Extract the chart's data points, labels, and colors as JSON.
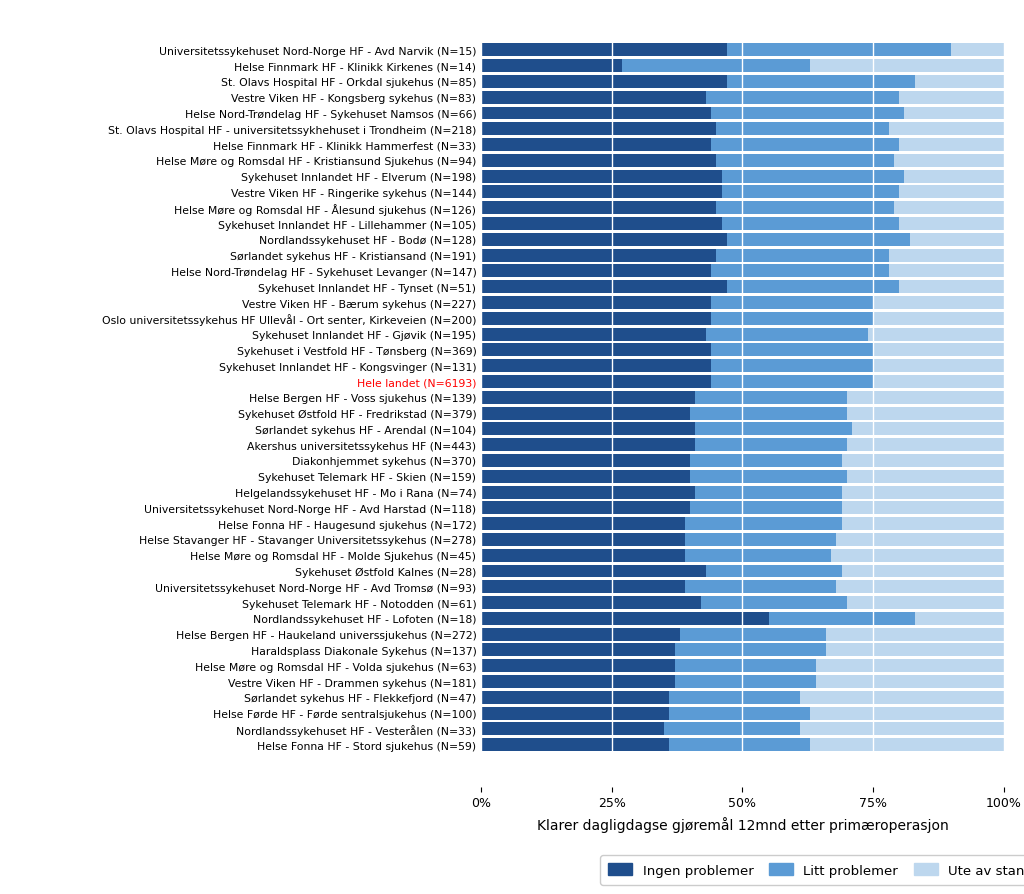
{
  "hospitals": [
    "Universitetssykehuset Nord-Norge HF - Avd Narvik (N=15)",
    "Helse Finnmark HF - Klinikk Kirkenes (N=14)",
    "St. Olavs Hospital HF - Orkdal sjukehus (N=85)",
    "Vestre Viken HF - Kongsberg sykehus (N=83)",
    "Helse Nord-Trøndelag HF - Sykehuset Namsos (N=66)",
    "St. Olavs Hospital HF - universitetssykhehuset i Trondheim (N=218)",
    "Helse Finnmark HF - Klinikk Hammerfest (N=33)",
    "Helse Møre og Romsdal HF - Kristiansund Sjukehus (N=94)",
    "Sykehuset Innlandet HF - Elverum (N=198)",
    "Vestre Viken HF - Ringerike sykehus (N=144)",
    "Helse Møre og Romsdal HF - Ålesund sjukehus (N=126)",
    "Sykehuset Innlandet HF - Lillehammer (N=105)",
    "Nordlandssykehuset HF - Bodø (N=128)",
    "Sørlandet sykehus HF - Kristiansand (N=191)",
    "Helse Nord-Trøndelag HF - Sykehuset Levanger (N=147)",
    "Sykehuset Innlandet HF - Tynset (N=51)",
    "Vestre Viken HF - Bærum sykehus (N=227)",
    "Oslo universitetssykehus HF Ullevål - Ort senter, Kirkeveien (N=200)",
    "Sykehuset Innlandet HF - Gjøvik (N=195)",
    "Sykehuset i Vestfold HF - Tønsberg (N=369)",
    "Sykehuset Innlandet HF - Kongsvinger (N=131)",
    "Hele landet (N=6193)",
    "Helse Bergen HF - Voss sjukehus (N=139)",
    "Sykehuset Østfold HF - Fredrikstad (N=379)",
    "Sørlandet sykehus HF - Arendal (N=104)",
    "Akershus universitetssykehus HF (N=443)",
    "Diakonhjemmet sykehus (N=370)",
    "Sykehuset Telemark HF - Skien (N=159)",
    "Helgelandssykehuset HF - Mo i Rana (N=74)",
    "Universitetssykehuset Nord-Norge HF - Avd Harstad (N=118)",
    "Helse Fonna HF - Haugesund sjukehus (N=172)",
    "Helse Stavanger HF - Stavanger Universitetssykehus (N=278)",
    "Helse Møre og Romsdal HF - Molde Sjukehus (N=45)",
    "Sykehuset Østfold Kalnes (N=28)",
    "Universitetssykehuset Nord-Norge HF - Avd Tromsø (N=93)",
    "Sykehuset Telemark HF - Notodden (N=61)",
    "Nordlandssykehuset HF - Lofoten (N=18)",
    "Helse Bergen HF - Haukeland universsjukehus (N=272)",
    "Haraldsplass Diakonale Sykehus (N=137)",
    "Helse Møre og Romsdal HF - Volda sjukehus (N=63)",
    "Vestre Viken HF - Drammen sykehus (N=181)",
    "Sørlandet sykehus HF - Flekkefjord (N=47)",
    "Helse Førde HF - Førde sentralsjukehus (N=100)",
    "Nordlandssykehuset HF - Vesterålen (N=33)",
    "Helse Fonna HF - Stord sjukehus (N=59)"
  ],
  "ingen_pct": [
    47,
    27,
    47,
    43,
    44,
    45,
    44,
    45,
    46,
    46,
    45,
    46,
    47,
    45,
    44,
    47,
    44,
    44,
    43,
    44,
    44,
    44,
    41,
    40,
    41,
    41,
    40,
    40,
    41,
    40,
    39,
    39,
    39,
    43,
    39,
    42,
    55,
    38,
    37,
    37,
    37,
    36,
    36,
    35,
    36
  ],
  "litt_pct": [
    43,
    36,
    36,
    37,
    37,
    33,
    36,
    34,
    35,
    34,
    34,
    34,
    35,
    33,
    34,
    33,
    31,
    31,
    31,
    31,
    31,
    31,
    29,
    30,
    30,
    29,
    29,
    30,
    28,
    29,
    30,
    29,
    28,
    26,
    29,
    28,
    28,
    28,
    29,
    27,
    27,
    25,
    27,
    26,
    27
  ],
  "ute_pct": [
    10,
    37,
    17,
    20,
    19,
    22,
    20,
    21,
    19,
    20,
    21,
    20,
    18,
    22,
    22,
    20,
    25,
    25,
    26,
    25,
    25,
    25,
    30,
    30,
    29,
    30,
    31,
    30,
    31,
    31,
    31,
    32,
    33,
    31,
    32,
    30,
    17,
    34,
    34,
    36,
    36,
    39,
    37,
    39,
    37
  ],
  "color_ingen": "#1F4E8C",
  "color_litt": "#5B9BD5",
  "color_ute": "#BDD7EE",
  "hele_landet_color": "#FF0000",
  "xlabel": "Klarer dagligdagse gjøremål 12mnd etter primæroperasjon",
  "legend_labels": [
    "Ingen problemer",
    "Litt problemer",
    "Ute av stand"
  ],
  "xtick_labels": [
    "0%",
    "25%",
    "50%",
    "75%",
    "100%"
  ],
  "xtick_values": [
    0,
    25,
    50,
    75,
    100
  ]
}
